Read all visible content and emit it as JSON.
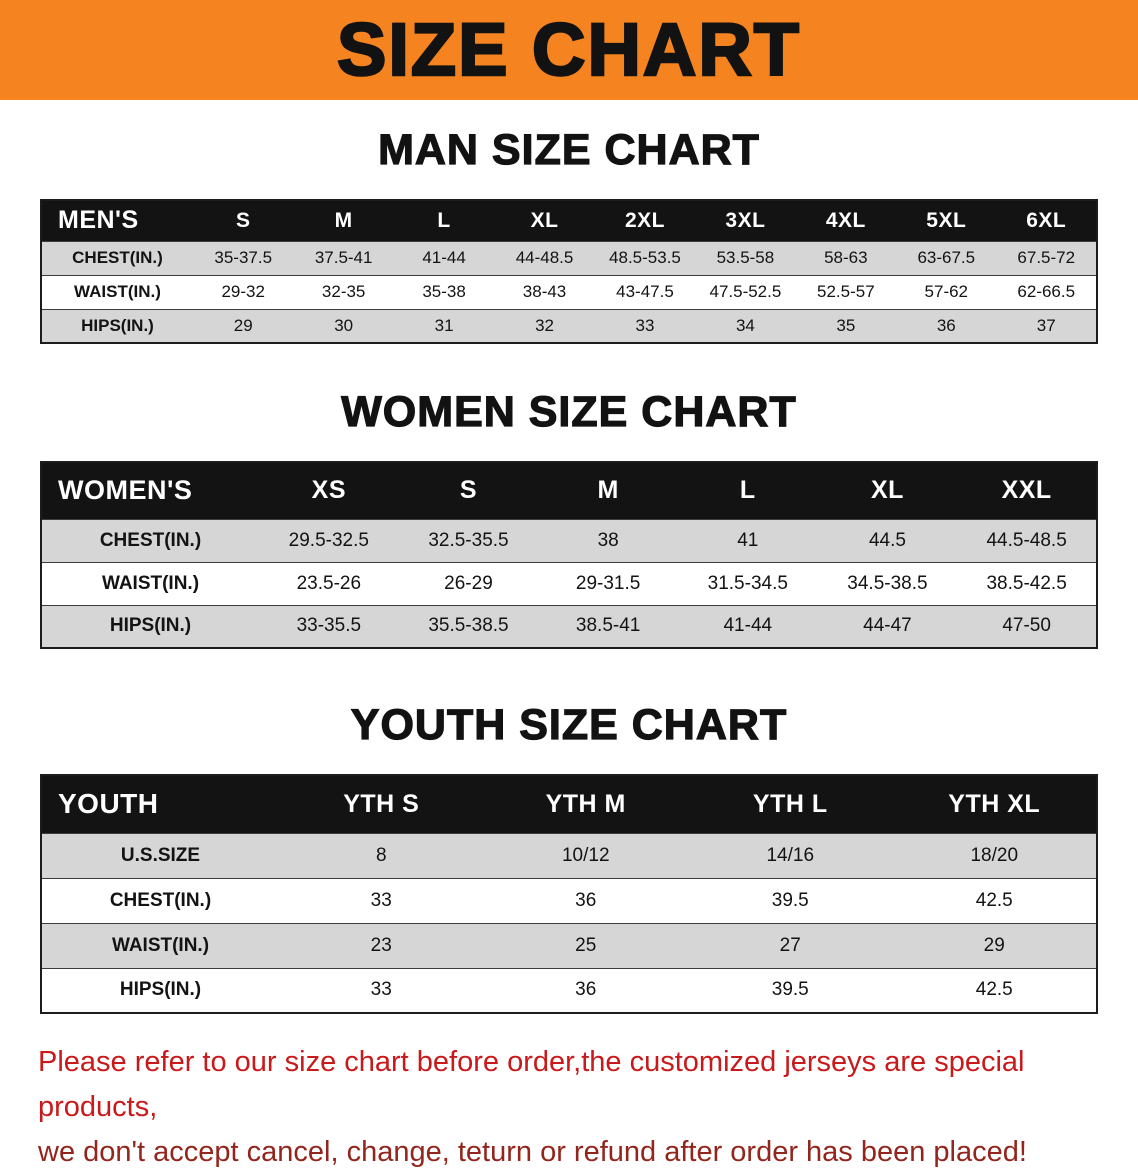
{
  "banner": {
    "title": "SIZE CHART",
    "background_color": "#F5831F",
    "text_color": "#121212"
  },
  "sections": [
    {
      "heading": "MAN SIZE CHART",
      "table": {
        "header": [
          "MEN'S",
          "S",
          "M",
          "L",
          "XL",
          "2XL",
          "3XL",
          "4XL",
          "5XL",
          "6XL"
        ],
        "rows": [
          {
            "label": "CHEST(IN.)",
            "values": [
              "35-37.5",
              "37.5-41",
              "41-44",
              "44-48.5",
              "48.5-53.5",
              "53.5-58",
              "58-63",
              "63-67.5",
              "67.5-72"
            ]
          },
          {
            "label": "WAIST(IN.)",
            "values": [
              "29-32",
              "32-35",
              "35-38",
              "38-43",
              "43-47.5",
              "47.5-52.5",
              "52.5-57",
              "57-62",
              "62-66.5"
            ]
          },
          {
            "label": "HIPS(IN.)",
            "values": [
              "29",
              "30",
              "31",
              "32",
              "33",
              "34",
              "35",
              "36",
              "37"
            ]
          }
        ]
      }
    },
    {
      "heading": "WOMEN SIZE CHART",
      "table": {
        "header": [
          "WOMEN'S",
          "XS",
          "S",
          "M",
          "L",
          "XL",
          "XXL"
        ],
        "rows": [
          {
            "label": "CHEST(IN.)",
            "values": [
              "29.5-32.5",
              "32.5-35.5",
              "38",
              "41",
              "44.5",
              "44.5-48.5"
            ]
          },
          {
            "label": "WAIST(IN.)",
            "values": [
              "23.5-26",
              "26-29",
              "29-31.5",
              "31.5-34.5",
              "34.5-38.5",
              "38.5-42.5"
            ]
          },
          {
            "label": "HIPS(IN.)",
            "values": [
              "33-35.5",
              "35.5-38.5",
              "38.5-41",
              "41-44",
              "44-47",
              "47-50"
            ]
          }
        ]
      }
    },
    {
      "heading": "YOUTH SIZE CHART",
      "table": {
        "header": [
          "YOUTH",
          "YTH S",
          "YTH M",
          "YTH L",
          "YTH XL"
        ],
        "rows": [
          {
            "label": "U.S.SIZE",
            "values": [
              "8",
              "10/12",
              "14/16",
              "18/20"
            ]
          },
          {
            "label": "CHEST(IN.)",
            "values": [
              "33",
              "36",
              "39.5",
              "42.5"
            ]
          },
          {
            "label": "WAIST(IN.)",
            "values": [
              "23",
              "25",
              "27",
              "29"
            ]
          },
          {
            "label": "HIPS(IN.)",
            "values": [
              "33",
              "36",
              "39.5",
              "42.5"
            ]
          }
        ]
      }
    }
  ],
  "disclaimer": {
    "line1": "Please refer to our size chart before order,the customized jerseys are special products,",
    "line2": "we don't accept cancel, change, teturn or refund after order has been placed!",
    "text_color_line1": "#C9191B",
    "text_color_line2": "#93251C"
  }
}
